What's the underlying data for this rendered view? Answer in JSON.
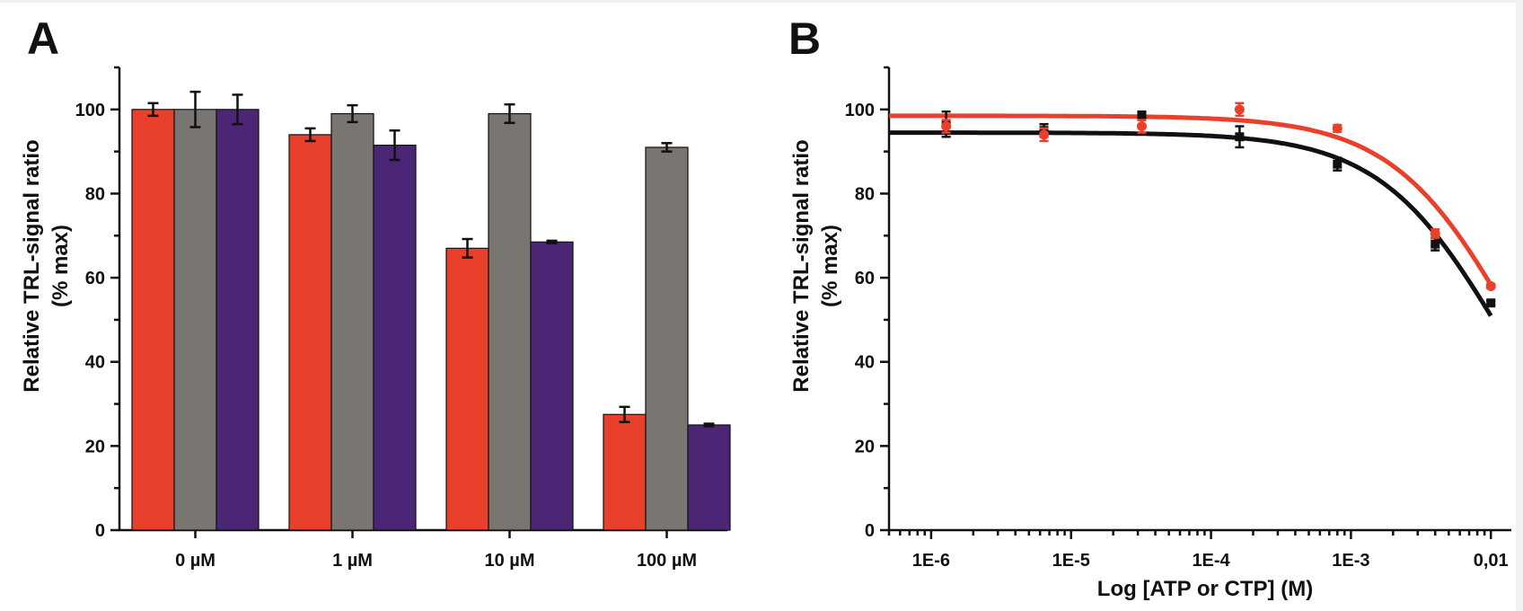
{
  "chart_data": [
    {
      "type": "bar",
      "panel_label": "A",
      "title": "",
      "ylabel": "Relative TRL-signal ratio",
      "ylabel_sub": "(% max)",
      "xlabel": "",
      "ylim": [
        0,
        110
      ],
      "yticks": [
        0,
        20,
        40,
        60,
        80,
        100
      ],
      "categories": [
        "0 µM",
        "1 µM",
        "10 µM",
        "100 µM"
      ],
      "series": [
        {
          "name": "red",
          "color": "#e8402a",
          "values": [
            100,
            94,
            67,
            27.5
          ],
          "errors": [
            1.5,
            1.5,
            2.2,
            1.8
          ]
        },
        {
          "name": "grey",
          "color": "#797570",
          "values": [
            100,
            99,
            99,
            91
          ],
          "errors": [
            4.2,
            2.0,
            2.2,
            1.0
          ]
        },
        {
          "name": "purple",
          "color": "#4b2675",
          "values": [
            100,
            91.5,
            68.5,
            25
          ],
          "errors": [
            3.5,
            3.5,
            0.3,
            0.3
          ]
        }
      ]
    },
    {
      "type": "scatter",
      "panel_label": "B",
      "title": "",
      "ylabel": "Relative TRL-signal ratio",
      "ylabel_sub": "(% max)",
      "xlabel": "Log [ATP or CTP] (M)",
      "xscale": "log",
      "xlim": [
        5e-07,
        0.014
      ],
      "ylim": [
        0,
        110
      ],
      "yticks": [
        0,
        20,
        40,
        60,
        80,
        100
      ],
      "xticks": [
        {
          "value": 1e-06,
          "label": "1E-6"
        },
        {
          "value": 1e-05,
          "label": "1E-5"
        },
        {
          "value": 0.0001,
          "label": "1E-4"
        },
        {
          "value": 0.001,
          "label": "1E-3"
        },
        {
          "value": 0.01,
          "label": "0,01"
        }
      ],
      "series": [
        {
          "name": "black",
          "color": "#111111",
          "x": [
            1.28e-06,
            6.4e-06,
            3.2e-05,
            0.00016,
            0.0008,
            0.004,
            0.01
          ],
          "y": [
            96.5,
            95,
            98.5,
            93.5,
            87,
            68,
            54
          ],
          "errors": [
            3,
            1.5,
            1,
            2.5,
            1.5,
            1.5,
            0.5
          ],
          "fit": {
            "top": 94.5,
            "ic50": 0.0117,
            "hill": 1.0
          }
        },
        {
          "name": "red",
          "color": "#e8402a",
          "x": [
            1.28e-06,
            6.4e-06,
            3.2e-05,
            0.00016,
            0.0008,
            0.004,
            0.01
          ],
          "y": [
            96,
            94,
            96,
            100,
            95.5,
            70.5,
            58
          ],
          "errors": [
            1.5,
            1.5,
            1.5,
            1.5,
            0.8,
            1,
            0.5
          ],
          "fit": {
            "top": 98.5,
            "ic50": 0.0145,
            "hill": 1.0
          }
        }
      ]
    }
  ]
}
